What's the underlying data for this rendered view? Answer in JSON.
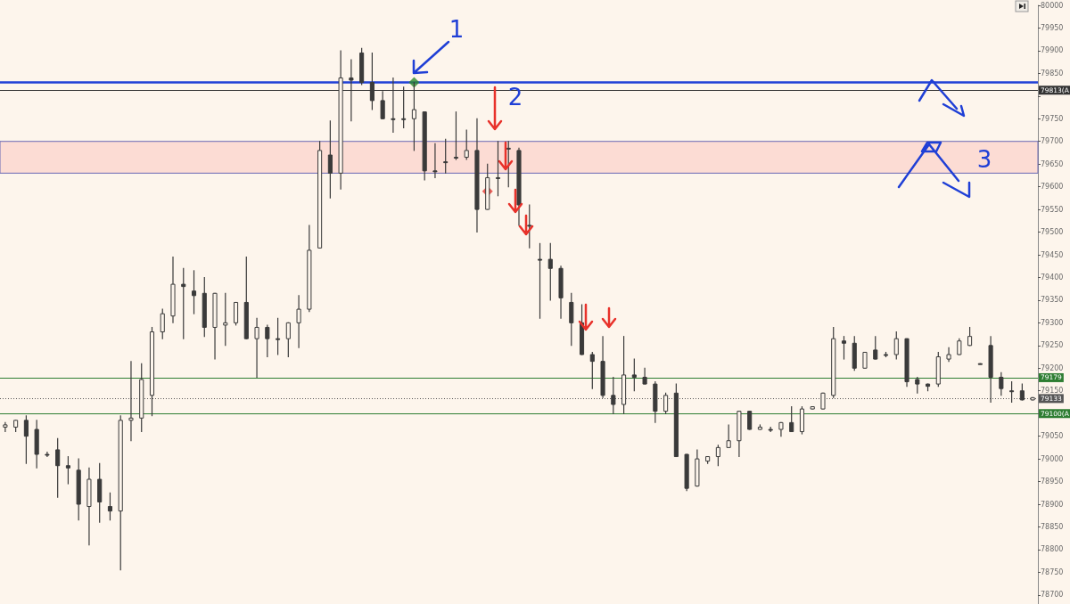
{
  "chart_data": {
    "type": "candlestick",
    "categories": [
      null,
      null,
      null,
      null,
      null,
      null,
      null,
      null,
      null,
      null,
      null,
      null,
      null,
      null,
      null,
      null,
      null,
      null,
      null,
      null,
      null,
      null,
      null,
      null,
      null,
      null,
      null,
      null,
      null,
      null,
      null,
      null,
      null,
      null,
      null,
      null,
      null,
      null,
      null,
      null,
      null,
      null,
      null,
      null,
      null,
      null,
      null,
      null,
      null,
      null,
      null,
      null,
      null,
      null,
      null,
      null,
      null,
      null,
      null,
      null,
      null,
      null,
      null,
      null,
      null,
      null,
      null,
      null,
      null,
      null,
      null,
      null,
      null,
      null,
      null,
      null,
      null,
      null,
      null,
      null,
      null,
      null,
      null,
      null,
      null,
      null,
      null,
      null,
      null,
      null,
      null,
      null,
      null,
      null,
      null,
      null,
      null,
      null,
      null
    ],
    "color": "#3a3a3a",
    "ohlc": [
      [
        79070,
        79080,
        79060,
        79075
      ],
      [
        79070,
        79085,
        79060,
        79085
      ],
      [
        79085,
        79095,
        78990,
        79050
      ],
      [
        79065,
        79085,
        78980,
        79010
      ],
      [
        79010,
        79015,
        79005,
        79010
      ],
      [
        79020,
        79045,
        78915,
        78985
      ],
      [
        78985,
        79005,
        78945,
        78980
      ],
      [
        78975,
        79000,
        78865,
        78900
      ],
      [
        78895,
        78980,
        78810,
        78955
      ],
      [
        78955,
        78990,
        78860,
        78905
      ],
      [
        78895,
        78925,
        78865,
        78885
      ],
      [
        78885,
        79095,
        78755,
        79085
      ],
      [
        79085,
        79215,
        79040,
        79090
      ],
      [
        79090,
        79210,
        79060,
        79175
      ],
      [
        79140,
        79290,
        79095,
        79280
      ],
      [
        79280,
        79330,
        79265,
        79320
      ],
      [
        79315,
        79445,
        79300,
        79385
      ],
      [
        79385,
        79420,
        79265,
        79380
      ],
      [
        79370,
        79415,
        79320,
        79360
      ],
      [
        79365,
        79400,
        79270,
        79290
      ],
      [
        79290,
        79365,
        79220,
        79365
      ],
      [
        79295,
        79365,
        79250,
        79300
      ],
      [
        79300,
        79345,
        79295,
        79345
      ],
      [
        79345,
        79445,
        79265,
        79265
      ],
      [
        79265,
        79310,
        79180,
        79290
      ],
      [
        79290,
        79295,
        79225,
        79265
      ],
      [
        79265,
        79310,
        79230,
        79265
      ],
      [
        79265,
        79300,
        79225,
        79300
      ],
      [
        79300,
        79360,
        79245,
        79330
      ],
      [
        79330,
        79515,
        79325,
        79460
      ],
      [
        79465,
        79700,
        79465,
        79680
      ],
      [
        79670,
        79745,
        79575,
        79630
      ],
      [
        79630,
        79900,
        79595,
        79840
      ],
      [
        79840,
        79880,
        79745,
        79835
      ],
      [
        79895,
        79905,
        79825,
        79830
      ],
      [
        79830,
        79895,
        79770,
        79790
      ],
      [
        79790,
        79810,
        79750,
        79750
      ],
      [
        79750,
        79840,
        79720,
        79750
      ],
      [
        79750,
        79820,
        79730,
        79750
      ],
      [
        79750,
        79830,
        79680,
        79770
      ],
      [
        79765,
        79765,
        79615,
        79635
      ],
      [
        79635,
        79695,
        79620,
        79635
      ],
      [
        79655,
        79705,
        79630,
        79655
      ],
      [
        79665,
        79765,
        79660,
        79665
      ],
      [
        79665,
        79725,
        79660,
        79680
      ],
      [
        79680,
        79750,
        79500,
        79550
      ],
      [
        79550,
        79650,
        79550,
        79620
      ],
      [
        79620,
        79700,
        79580,
        79620
      ],
      [
        79685,
        79700,
        79600,
        79685
      ],
      [
        79680,
        79685,
        79515,
        79560
      ],
      [
        79515,
        79560,
        79465,
        79515
      ],
      [
        79440,
        79475,
        79310,
        79440
      ],
      [
        79440,
        79475,
        79350,
        79420
      ],
      [
        79420,
        79425,
        79310,
        79355
      ],
      [
        79345,
        79365,
        79250,
        79300
      ],
      [
        79300,
        79340,
        79230,
        79230
      ],
      [
        79230,
        79235,
        79155,
        79215
      ],
      [
        79215,
        79270,
        79135,
        79140
      ],
      [
        79140,
        79180,
        79100,
        79120
      ],
      [
        79120,
        79270,
        79100,
        79185
      ],
      [
        79185,
        79220,
        79150,
        79180
      ],
      [
        79180,
        79200,
        79165,
        79165
      ],
      [
        79165,
        79170,
        79080,
        79105
      ],
      [
        79105,
        79145,
        79100,
        79140
      ],
      [
        79145,
        79165,
        79005,
        79005
      ],
      [
        79010,
        79010,
        78930,
        78935
      ],
      [
        78940,
        79020,
        78940,
        79000
      ],
      [
        78995,
        79005,
        78990,
        79005
      ],
      [
        79005,
        79030,
        78985,
        79025
      ],
      [
        79025,
        79075,
        79025,
        79040
      ],
      [
        79040,
        79105,
        79005,
        79105
      ],
      [
        79105,
        79105,
        79065,
        79065
      ],
      [
        79065,
        79075,
        79065,
        79070
      ],
      [
        79065,
        79070,
        79060,
        79065
      ],
      [
        79065,
        79080,
        79050,
        79080
      ],
      [
        79080,
        79115,
        79060,
        79060
      ],
      [
        79060,
        79115,
        79055,
        79110
      ],
      [
        79110,
        79115,
        79110,
        79115
      ],
      [
        79110,
        79145,
        79110,
        79145
      ],
      [
        79140,
        79290,
        79135,
        79265
      ],
      [
        79260,
        79270,
        79220,
        79255
      ],
      [
        79255,
        79270,
        79195,
        79200
      ],
      [
        79200,
        79235,
        79200,
        79235
      ],
      [
        79240,
        79270,
        79220,
        79220
      ],
      [
        79230,
        79235,
        79225,
        79230
      ],
      [
        79230,
        79280,
        79220,
        79265
      ],
      [
        79265,
        79265,
        79160,
        79170
      ],
      [
        79175,
        79180,
        79145,
        79165
      ],
      [
        79165,
        79165,
        79150,
        79160
      ],
      [
        79165,
        79235,
        79160,
        79225
      ],
      [
        79220,
        79245,
        79215,
        79230
      ],
      [
        79230,
        79265,
        79230,
        79260
      ],
      [
        79250,
        79290,
        79250,
        79270
      ],
      [
        79210,
        79210,
        79210,
        79210
      ],
      [
        79250,
        79270,
        79125,
        79180
      ],
      [
        79180,
        79190,
        79140,
        79155
      ],
      [
        79150,
        79170,
        79125,
        79150
      ],
      [
        79150,
        79165,
        79130,
        79130
      ],
      [
        79130,
        79135,
        79130,
        79135
      ]
    ],
    "series": [
      {
        "type": "scatter",
        "color": "#2e8b2e",
        "values": [
          null,
          null,
          null,
          null,
          null,
          null,
          null,
          null,
          null,
          null,
          null,
          null,
          null,
          null,
          null,
          null,
          null,
          null,
          null,
          null,
          null,
          null,
          null,
          null,
          null,
          null,
          null,
          null,
          null,
          null,
          null,
          null,
          null,
          null,
          null,
          null,
          null,
          null,
          null,
          79830,
          null,
          null,
          null,
          null,
          null,
          null,
          null,
          null,
          null,
          null,
          null,
          null,
          null,
          null,
          null,
          null,
          null,
          null,
          null,
          null,
          null,
          null,
          null,
          null,
          null,
          null,
          null,
          null,
          null,
          null,
          null,
          null,
          null,
          null,
          null,
          null,
          null,
          null,
          null,
          null,
          null,
          null,
          null,
          null,
          null,
          null,
          null,
          null,
          null,
          null,
          null,
          null,
          null,
          null,
          null,
          null,
          null,
          null,
          null
        ]
      },
      {
        "type": "scatter",
        "color": "#e53935",
        "values": [
          null,
          null,
          null,
          null,
          null,
          null,
          null,
          null,
          null,
          null,
          null,
          null,
          null,
          null,
          null,
          null,
          null,
          null,
          null,
          null,
          null,
          null,
          null,
          null,
          null,
          null,
          null,
          null,
          null,
          null,
          null,
          null,
          null,
          null,
          null,
          null,
          null,
          null,
          null,
          null,
          null,
          null,
          null,
          null,
          null,
          null,
          79590,
          null,
          null,
          null,
          null,
          null,
          null,
          null,
          null,
          null,
          null,
          null,
          null,
          null,
          null,
          null,
          null,
          null,
          null,
          null,
          null,
          null,
          null,
          null,
          null,
          null,
          null,
          null,
          null,
          null,
          null,
          null,
          null,
          null,
          null,
          null,
          null,
          null,
          null,
          null,
          null,
          null,
          null,
          null,
          null,
          null,
          null,
          null,
          null,
          null,
          null,
          null,
          null
        ]
      }
    ],
    "marker": "diamond",
    "ylim": [
      78680,
      80000
    ],
    "yticks": [
      78700,
      78750,
      78800,
      78850,
      78900,
      78950,
      79000,
      79050,
      {
        "value": 79100,
        "label": null
      },
      79150,
      79200,
      79250,
      79300,
      79350,
      79400,
      79450,
      79500,
      79550,
      79600,
      79650,
      79700,
      79750,
      {
        "value": 79800,
        "label": null
      },
      79850,
      79900,
      79950,
      80000
    ],
    "tick_labels": "y",
    "ref_lines": [
      {
        "axis": "y",
        "value": 79830,
        "label": null,
        "color": "#1f3fd6",
        "line_style": "solid"
      },
      {
        "axis": "y",
        "value": 79813,
        "label": "79813(A",
        "color": "#333333",
        "line_style": "solid"
      },
      {
        "axis": "y",
        "value": 79179,
        "label": "79179",
        "color": "#2e7d32",
        "line_style": "solid"
      },
      {
        "axis": "y",
        "value": 79133,
        "label": "79133",
        "color": "#555555",
        "line_style": "dotted"
      },
      {
        "axis": "y",
        "value": 79100,
        "label": "79100(A",
        "color": "#2e7d32",
        "line_style": "solid"
      }
    ],
    "bands": [
      {
        "axis": "y",
        "from": 79630,
        "to": 79700,
        "label": null,
        "color": "#fcdcd4"
      }
    ],
    "annotations": [
      "1",
      "2",
      "3"
    ]
  }
}
